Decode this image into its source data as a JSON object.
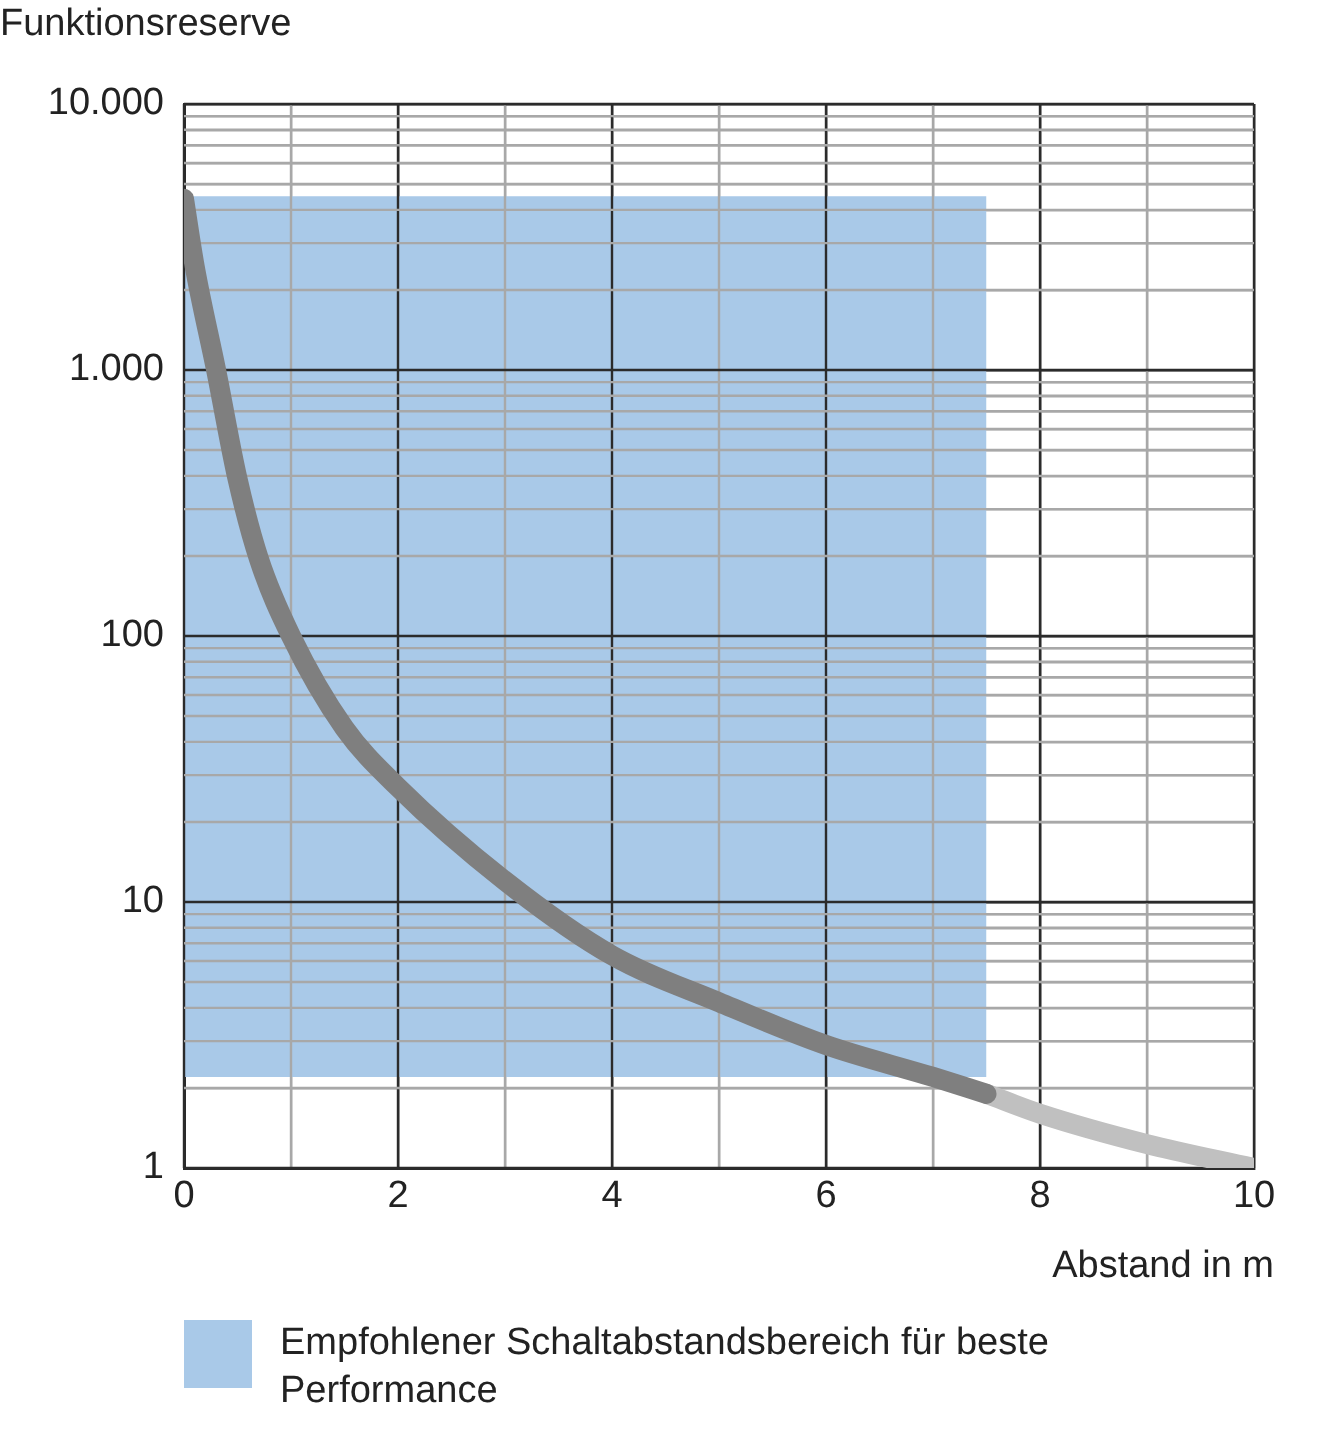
{
  "chart_data": {
    "type": "line",
    "log": "y",
    "xlabel": "Abstand in m",
    "ylabel": "Funktionsreserve",
    "xlim": [
      0,
      10
    ],
    "xticks": [
      0,
      {
        "value": 1,
        "label": null
      },
      2,
      {
        "value": 3,
        "label": null
      },
      4,
      {
        "value": 5,
        "label": null
      },
      6,
      {
        "value": 7,
        "label": null
      },
      8,
      {
        "value": 9,
        "label": null
      },
      10
    ],
    "ylim": [
      1,
      10000
    ],
    "yticks": [
      1,
      {
        "value": 2,
        "label": null
      },
      {
        "value": 3,
        "label": null
      },
      {
        "value": 4,
        "label": null
      },
      {
        "value": 5,
        "label": null
      },
      {
        "value": 6,
        "label": null
      },
      {
        "value": 7,
        "label": null
      },
      {
        "value": 8,
        "label": null
      },
      {
        "value": 9,
        "label": null
      },
      10,
      {
        "value": 20,
        "label": null
      },
      {
        "value": 30,
        "label": null
      },
      {
        "value": 40,
        "label": null
      },
      {
        "value": 50,
        "label": null
      },
      {
        "value": 60,
        "label": null
      },
      {
        "value": 70,
        "label": null
      },
      {
        "value": 80,
        "label": null
      },
      {
        "value": 90,
        "label": null
      },
      100,
      {
        "value": 200,
        "label": null
      },
      {
        "value": 300,
        "label": null
      },
      {
        "value": 400,
        "label": null
      },
      {
        "value": 500,
        "label": null
      },
      {
        "value": 600,
        "label": null
      },
      {
        "value": 700,
        "label": null
      },
      {
        "value": 800,
        "label": null
      },
      {
        "value": 900,
        "label": null
      },
      {
        "value": 1000,
        "label": "1.000"
      },
      {
        "value": 2000,
        "label": null
      },
      {
        "value": 3000,
        "label": null
      },
      {
        "value": 4000,
        "label": null
      },
      {
        "value": 5000,
        "label": null
      },
      {
        "value": 6000,
        "label": null
      },
      {
        "value": 7000,
        "label": null
      },
      {
        "value": 8000,
        "label": null
      },
      {
        "value": 9000,
        "label": null
      },
      {
        "value": 10000,
        "label": "10.000"
      }
    ],
    "grid": true,
    "legend": "bottom",
    "series": [
      {
        "type": "line",
        "name": "Empfohlener Schaltabstandsbereich für beste Performance",
        "color": "#a9c9e8",
        "x": [
          0,
          7.5
        ],
        "values": [
          null,
          null
        ],
        "lower": [
          2.2,
          2.2
        ],
        "upper": [
          4500,
          4500
        ]
      },
      {
        "type": "line",
        "color": "#7f7f7f",
        "x": [
          0,
          0.1,
          0.3,
          0.5,
          0.7,
          1,
          1.5,
          2,
          3,
          4,
          5,
          6,
          7,
          7.5
        ],
        "values": [
          4400,
          2450,
          1000,
          390,
          195,
          100,
          45,
          27,
          12,
          6.3,
          4.2,
          2.9,
          2.2,
          1.9
        ]
      },
      {
        "type": "line",
        "color": "#c0c0c0",
        "x": [
          7.5,
          8,
          9,
          10
        ],
        "values": [
          1.9,
          1.6,
          1.23,
          1
        ]
      }
    ]
  }
}
